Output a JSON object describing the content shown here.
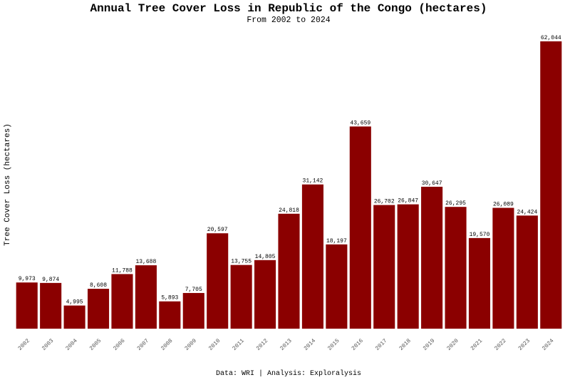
{
  "chart_data": {
    "type": "bar",
    "title": "Annual Tree Cover Loss in Republic of the Congo (hectares)",
    "subtitle": "From 2002 to 2024",
    "xlabel": "",
    "ylabel": "Tree Cover Loss (hectares)",
    "caption": "Data: WRI | Analysis: Exploralysis",
    "categories": [
      "2002",
      "2003",
      "2004",
      "2005",
      "2006",
      "2007",
      "2008",
      "2009",
      "2010",
      "2011",
      "2012",
      "2013",
      "2014",
      "2015",
      "2016",
      "2017",
      "2018",
      "2019",
      "2020",
      "2021",
      "2022",
      "2023",
      "2024"
    ],
    "values": [
      9973,
      9874,
      4995,
      8608,
      11788,
      13688,
      5893,
      7705,
      20597,
      13755,
      14805,
      24818,
      31142,
      18197,
      43659,
      26702,
      26847,
      30647,
      26295,
      19570,
      26089,
      24424,
      62044
    ],
    "value_labels": [
      "9,973",
      "9,874",
      "4,995",
      "8,608",
      "11,788",
      "13,688",
      "5,893",
      "7,705",
      "20,597",
      "13,755",
      "14,805",
      "24,818",
      "31,142",
      "18,197",
      "43,659",
      "26,702",
      "26,847",
      "30,647",
      "26,295",
      "19,570",
      "26,089",
      "24,424",
      "62,044"
    ],
    "ylim": [
      0,
      62044
    ],
    "grid": false,
    "legend": "none",
    "bar_color": "#8b0000"
  }
}
